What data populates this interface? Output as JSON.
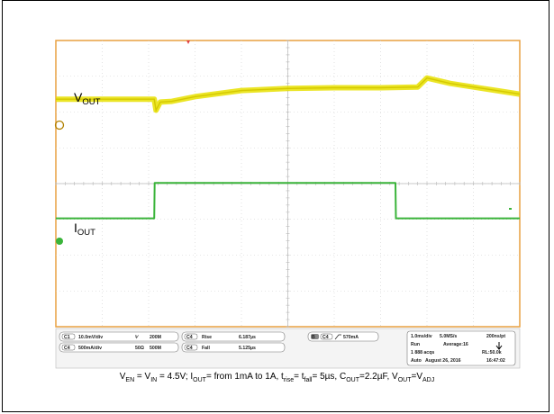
{
  "chart_data": {
    "type": "line",
    "title": "",
    "xlabel": "",
    "ylabel": "",
    "grid": true,
    "timebase_ms_per_div": 1.0,
    "x_range_ms": [
      0,
      10
    ],
    "series": [
      {
        "name": "VOUT",
        "color": "#e8e000",
        "x": [
          0,
          2.12,
          2.16,
          2.25,
          2.5,
          3.0,
          4.0,
          5.0,
          6.0,
          7.0,
          7.8,
          8.0,
          8.5,
          9.0,
          9.5,
          10.0
        ],
        "y_div": [
          2.36,
          2.36,
          2.05,
          2.28,
          2.3,
          2.43,
          2.6,
          2.66,
          2.68,
          2.68,
          2.7,
          2.95,
          2.8,
          2.7,
          2.6,
          2.5
        ]
      },
      {
        "name": "IOUT",
        "color": "#3ab43a",
        "x": [
          0,
          2.12,
          2.13,
          7.32,
          7.33,
          10.0
        ],
        "y_div": [
          -0.97,
          -0.97,
          0.02,
          0.02,
          -0.97,
          -0.97
        ]
      }
    ]
  },
  "labels": {
    "vout_main": "V",
    "vout_sub": "OUT",
    "iout_main": "I",
    "iout_sub": "OUT"
  },
  "status_bar": {
    "ch1_scale": "10.0mV/div",
    "ch1_coupling": "⅟",
    "ch1_bw": "200M",
    "ch4_scale": "500mA/div",
    "ch4_imp": "50Ω",
    "ch4_bw": "500M",
    "meas1_name": "Rise",
    "meas1_value": "6.187µs",
    "meas2_name": "Fall",
    "meas2_value": "5.125µs",
    "trigger": "570mA",
    "timebase": "1.0ms/div",
    "sample_rate": "5.0MS/s",
    "resolution": "200ns/pt",
    "run_state": "Run",
    "acq_mode": "Average:16",
    "acq_count": "1 888 acqs",
    "record_length": "RL:50.0k",
    "trigger_mode": "Auto",
    "date": "August 26, 2016",
    "time": "16:47:02"
  },
  "caption": {
    "p1": "V",
    "s1": "EN",
    "p2": " = V",
    "s2": "IN",
    "p3": " = 4.5V; I",
    "s3": "OUT",
    "p4": "= from 1mA to 1A, t",
    "s4": "rise",
    "p5": "= t",
    "s5": "fall",
    "p6": "= 5µs,  C",
    "s6": "OUT",
    "p7": "=2.2µF, V",
    "s7": "OUT",
    "p8": "=V",
    "s8": "ADJ"
  },
  "colors": {
    "grid_frame": "#e8a040",
    "grid_line": "#cfcfcf",
    "vout": "#e8e000",
    "iout": "#3ab43a"
  }
}
